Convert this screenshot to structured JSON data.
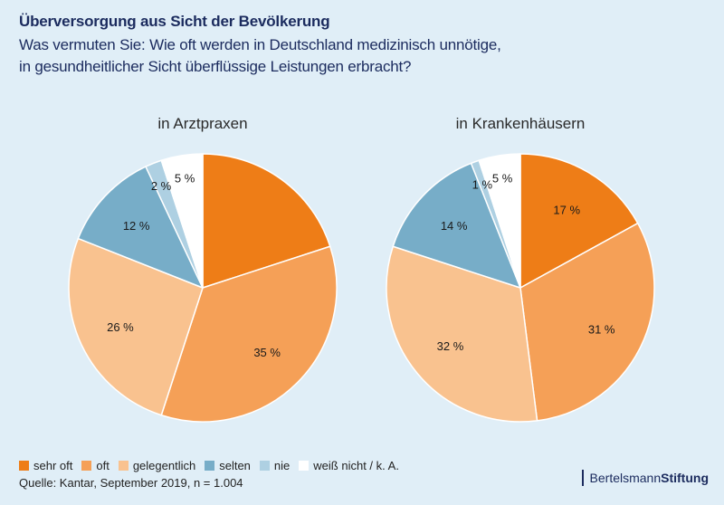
{
  "header": {
    "title": "Überversorgung aus Sicht der Bevölkerung",
    "subtitle_line1": "Was vermuten Sie: Wie oft werden in Deutschland medizinisch unnötige,",
    "subtitle_line2": "in gesundheitlicher Sicht überflüssige Leistungen erbracht?"
  },
  "chart_data": [
    {
      "type": "pie",
      "title": "in Arztpraxen",
      "categories": [
        "sehr oft",
        "oft",
        "gelegentlich",
        "selten",
        "nie",
        "weiß nicht / k. A."
      ],
      "values": [
        20,
        35,
        26,
        12,
        2,
        5
      ],
      "labels": [
        "",
        "35 %",
        "26 %",
        "12 %",
        "2 %",
        "5 %"
      ],
      "start": "12 o'clock",
      "direction": "clockwise"
    },
    {
      "type": "pie",
      "title": "in Krankenhäusern",
      "categories": [
        "sehr oft",
        "oft",
        "gelegentlich",
        "selten",
        "nie",
        "weiß nicht / k. A."
      ],
      "values": [
        17,
        31,
        32,
        14,
        1,
        5
      ],
      "labels": [
        "17 %",
        "31 %",
        "32 %",
        "14 %",
        "1 %",
        "5 %"
      ],
      "start": "12 o'clock",
      "direction": "clockwise"
    }
  ],
  "colors": [
    "#ee7d17",
    "#f5a057",
    "#f9c28f",
    "#77adc8",
    "#aed0e2",
    "#ffffff"
  ],
  "legend": {
    "items": [
      {
        "label": "sehr oft",
        "color": "#ee7d17"
      },
      {
        "label": "oft",
        "color": "#f5a057"
      },
      {
        "label": "gelegentlich",
        "color": "#f9c28f"
      },
      {
        "label": "selten",
        "color": "#77adc8"
      },
      {
        "label": "nie",
        "color": "#aed0e2"
      },
      {
        "label": "weiß nicht / k. A.",
        "color": "#ffffff"
      }
    ]
  },
  "footer": {
    "source": "Quelle: Kantar, September 2019, n = 1.004",
    "brand_part1": "Bertelsmann",
    "brand_part2": "Stiftung"
  }
}
